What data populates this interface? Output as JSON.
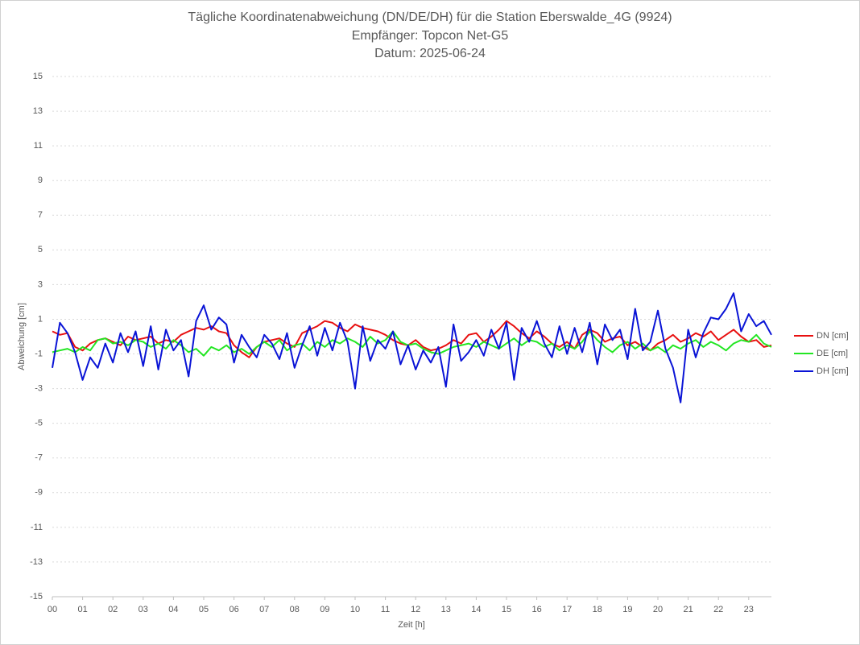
{
  "chart_data": {
    "type": "line",
    "title": "Tägliche Koordinatenabweichung (DN/DE/DH) für die Station Eberswalde_4G (9924)",
    "subtitle": "Empfänger: Topcon Net-G5",
    "date_line": "Datum: 2025-06-24",
    "x_label": "Zeit [h]",
    "y_label": "Abweichung [cm]",
    "xlim": [
      0,
      23.75
    ],
    "xticks": [
      {
        "value": 0,
        "label": "00"
      },
      {
        "value": 1,
        "label": "01"
      },
      {
        "value": 2,
        "label": "02"
      },
      {
        "value": 3,
        "label": "03"
      },
      {
        "value": 4,
        "label": "04"
      },
      {
        "value": 5,
        "label": "05"
      },
      {
        "value": 6,
        "label": "06"
      },
      {
        "value": 7,
        "label": "07"
      },
      {
        "value": 8,
        "label": "08"
      },
      {
        "value": 9,
        "label": "09"
      },
      10,
      11,
      12,
      13,
      14,
      15,
      16,
      17,
      18,
      19,
      20,
      21,
      22,
      23
    ],
    "ylim": [
      -15,
      15
    ],
    "yticks": [
      -15,
      -13,
      -11,
      -9,
      -7,
      -5,
      -3,
      -1,
      1,
      3,
      5,
      7,
      9,
      11,
      13,
      15
    ],
    "grid": true,
    "legend": "right",
    "x": [
      0,
      0.25,
      0.5,
      0.75,
      1,
      1.25,
      1.5,
      1.75,
      2,
      2.25,
      2.5,
      2.75,
      3,
      3.25,
      3.5,
      3.75,
      4,
      4.25,
      4.5,
      4.75,
      5,
      5.25,
      5.5,
      5.75,
      6,
      6.25,
      6.5,
      6.75,
      7,
      7.25,
      7.5,
      7.75,
      8,
      8.25,
      8.5,
      8.75,
      9,
      9.25,
      9.5,
      9.75,
      10,
      10.25,
      10.5,
      10.75,
      11,
      11.25,
      11.5,
      11.75,
      12,
      12.25,
      12.5,
      12.75,
      13,
      13.25,
      13.5,
      13.75,
      14,
      14.25,
      14.5,
      14.75,
      15,
      15.25,
      15.5,
      15.75,
      16,
      16.25,
      16.5,
      16.75,
      17,
      17.25,
      17.5,
      17.75,
      18,
      18.25,
      18.5,
      18.75,
      19,
      19.25,
      19.5,
      19.75,
      20,
      20.25,
      20.5,
      20.75,
      21,
      21.25,
      21.5,
      21.75,
      22,
      22.25,
      22.5,
      22.75,
      23,
      23.25,
      23.5,
      23.75
    ],
    "series": [
      {
        "name": "DN [cm]",
        "color": "#e81010",
        "values": [
          0.3,
          0.1,
          0.2,
          -0.6,
          -0.8,
          -0.4,
          -0.2,
          -0.1,
          -0.3,
          -0.5,
          0.0,
          -0.2,
          -0.1,
          0.0,
          -0.4,
          -0.2,
          -0.3,
          0.1,
          0.3,
          0.5,
          0.4,
          0.6,
          0.3,
          0.2,
          -0.5,
          -0.9,
          -1.2,
          -0.6,
          -0.3,
          -0.2,
          -0.1,
          -0.4,
          -0.6,
          0.2,
          0.4,
          0.6,
          0.9,
          0.8,
          0.5,
          0.3,
          0.7,
          0.5,
          0.4,
          0.3,
          0.1,
          -0.2,
          -0.4,
          -0.5,
          -0.2,
          -0.6,
          -0.8,
          -0.7,
          -0.5,
          -0.2,
          -0.4,
          0.1,
          0.2,
          -0.3,
          0.0,
          0.4,
          0.9,
          0.6,
          0.2,
          -0.1,
          0.3,
          0.0,
          -0.4,
          -0.6,
          -0.3,
          -0.7,
          0.1,
          0.4,
          0.2,
          -0.3,
          -0.1,
          0.0,
          -0.5,
          -0.3,
          -0.6,
          -0.8,
          -0.4,
          -0.2,
          0.1,
          -0.3,
          -0.1,
          0.2,
          0.0,
          0.3,
          -0.2,
          0.1,
          0.4,
          0.0,
          -0.3,
          -0.2,
          -0.6,
          -0.5
        ]
      },
      {
        "name": "DE [cm]",
        "color": "#22e622",
        "values": [
          -0.9,
          -0.8,
          -0.7,
          -0.9,
          -0.6,
          -0.8,
          -0.2,
          -0.1,
          -0.4,
          -0.3,
          -0.5,
          -0.2,
          -0.3,
          -0.6,
          -0.4,
          -0.7,
          -0.2,
          -0.5,
          -0.9,
          -0.7,
          -1.1,
          -0.6,
          -0.8,
          -0.5,
          -0.9,
          -0.7,
          -1.0,
          -0.6,
          -0.3,
          -0.6,
          -0.2,
          -0.8,
          -0.5,
          -0.4,
          -0.8,
          -0.3,
          -0.6,
          -0.2,
          -0.4,
          -0.1,
          -0.3,
          -0.6,
          0.0,
          -0.4,
          -0.2,
          0.3,
          -0.3,
          -0.5,
          -0.4,
          -0.7,
          -0.9,
          -1.0,
          -0.8,
          -0.6,
          -0.5,
          -0.4,
          -0.6,
          -0.3,
          -0.5,
          -0.7,
          -0.4,
          -0.1,
          -0.5,
          -0.2,
          -0.3,
          -0.6,
          -0.4,
          -0.8,
          -0.5,
          -0.7,
          -0.3,
          0.3,
          -0.2,
          -0.6,
          -0.9,
          -0.5,
          -0.3,
          -0.7,
          -0.4,
          -0.8,
          -0.6,
          -0.9,
          -0.5,
          -0.7,
          -0.4,
          -0.2,
          -0.6,
          -0.3,
          -0.5,
          -0.8,
          -0.4,
          -0.2,
          -0.3,
          0.1,
          -0.4,
          -0.6
        ]
      },
      {
        "name": "DH [cm]",
        "color": "#0a14d6",
        "values": [
          -1.8,
          0.8,
          0.2,
          -0.9,
          -2.5,
          -1.2,
          -1.8,
          -0.4,
          -1.5,
          0.2,
          -0.9,
          0.3,
          -1.7,
          0.6,
          -1.9,
          0.4,
          -0.8,
          -0.2,
          -2.3,
          0.9,
          1.8,
          0.4,
          1.1,
          0.7,
          -1.5,
          0.1,
          -0.6,
          -1.2,
          0.1,
          -0.4,
          -1.3,
          0.2,
          -1.8,
          -0.5,
          0.6,
          -1.1,
          0.5,
          -0.8,
          0.8,
          -0.3,
          -3.0,
          0.6,
          -1.4,
          -0.2,
          -0.7,
          0.3,
          -1.6,
          -0.5,
          -1.9,
          -0.8,
          -1.5,
          -0.6,
          -2.9,
          0.7,
          -1.4,
          -0.9,
          -0.2,
          -1.1,
          0.4,
          -0.7,
          0.8,
          -2.5,
          0.5,
          -0.3,
          0.9,
          -0.4,
          -1.2,
          0.6,
          -1.0,
          0.5,
          -0.9,
          0.8,
          -1.6,
          0.7,
          -0.2,
          0.4,
          -1.3,
          1.6,
          -0.8,
          -0.3,
          1.5,
          -0.7,
          -1.8,
          -3.8,
          0.4,
          -1.2,
          0.2,
          1.1,
          1.0,
          1.6,
          2.5,
          0.3,
          1.3,
          0.6,
          0.9,
          0.1
        ]
      }
    ]
  }
}
